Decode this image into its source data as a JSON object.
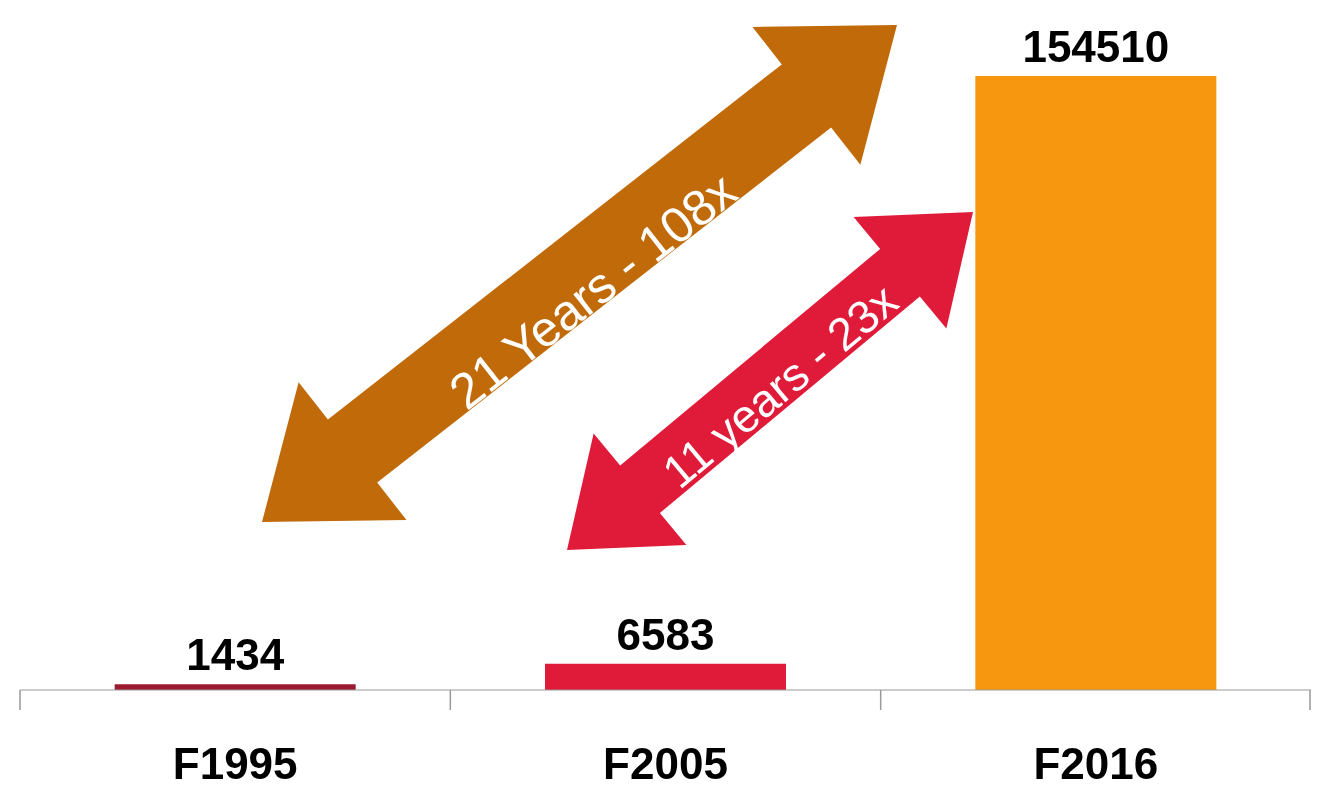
{
  "chart_data": {
    "type": "bar",
    "categories": [
      "F1995",
      "F2005",
      "F2016"
    ],
    "values": [
      1434,
      6583,
      154510
    ],
    "colors": [
      "#9b1b30",
      "#e01b3a",
      "#f7960f"
    ],
    "data_labels": true,
    "annotations": [
      "21 Years - 108x",
      "11 years - 23x"
    ]
  }
}
